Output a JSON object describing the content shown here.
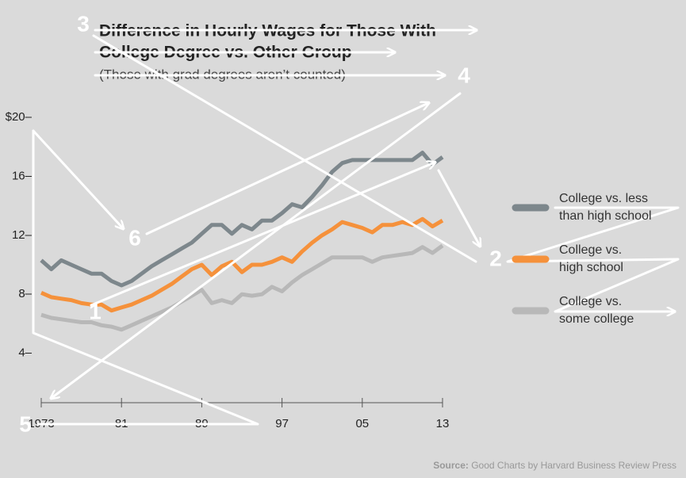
{
  "chart_data": {
    "type": "line",
    "title_lines": [
      "Difference in Hourly Wages for Those With",
      "College Degree vs. Other Group"
    ],
    "subtitle": "(Those with grad degrees aren’t counted)",
    "x": [
      1973,
      1974,
      1975,
      1976,
      1977,
      1978,
      1979,
      1980,
      1981,
      1982,
      1983,
      1984,
      1985,
      1986,
      1987,
      1988,
      1989,
      1990,
      1991,
      1992,
      1993,
      1994,
      1995,
      1996,
      1997,
      1998,
      1999,
      2000,
      2001,
      2002,
      2003,
      2004,
      2005,
      2006,
      2007,
      2008,
      2009,
      2010,
      2011,
      2012,
      2013
    ],
    "series": [
      {
        "name": "College vs. less than high school",
        "color": "#7d878c",
        "values": [
          10.3,
          9.7,
          10.3,
          10.0,
          9.7,
          9.4,
          9.4,
          8.9,
          8.6,
          8.9,
          9.4,
          9.9,
          10.3,
          10.7,
          11.1,
          11.5,
          12.1,
          12.7,
          12.7,
          12.1,
          12.7,
          12.4,
          13.0,
          13.0,
          13.5,
          14.1,
          13.9,
          14.6,
          15.4,
          16.3,
          16.9,
          17.1,
          17.1,
          17.1,
          17.1,
          17.1,
          17.1,
          17.1,
          17.6,
          16.8,
          17.3
        ]
      },
      {
        "name": "College vs. high school",
        "color": "#f5913b",
        "values": [
          8.1,
          7.8,
          7.7,
          7.6,
          7.4,
          7.3,
          7.3,
          6.9,
          7.1,
          7.3,
          7.6,
          7.9,
          8.3,
          8.7,
          9.2,
          9.7,
          10.0,
          9.3,
          9.9,
          10.2,
          9.5,
          10.0,
          10.0,
          10.2,
          10.5,
          10.2,
          10.9,
          11.5,
          12.0,
          12.4,
          12.9,
          12.7,
          12.5,
          12.2,
          12.7,
          12.7,
          12.9,
          12.7,
          13.1,
          12.6,
          13.0
        ]
      },
      {
        "name": "College vs. some college",
        "color": "#b8b8b8",
        "values": [
          6.6,
          6.4,
          6.3,
          6.2,
          6.1,
          6.1,
          5.9,
          5.8,
          5.6,
          5.9,
          6.2,
          6.5,
          6.8,
          7.1,
          7.5,
          7.9,
          8.3,
          7.4,
          7.6,
          7.4,
          8.0,
          7.9,
          8.0,
          8.5,
          8.2,
          8.8,
          9.3,
          9.7,
          10.1,
          10.5,
          10.5,
          10.5,
          10.5,
          10.2,
          10.5,
          10.6,
          10.7,
          10.8,
          11.2,
          10.8,
          11.3
        ]
      }
    ],
    "xlim": [
      1973,
      2013
    ],
    "xticks": [
      1973,
      {
        "value": 1981,
        "label": "81"
      },
      {
        "value": 1989,
        "label": "89"
      },
      {
        "value": 1997,
        "label": "97"
      },
      {
        "value": 2005,
        "label": "05"
      },
      {
        "value": 2013,
        "label": "13"
      }
    ],
    "ylim": [
      0,
      20
    ],
    "yticks": [
      {
        "value": 4,
        "label": "4–"
      },
      {
        "value": 8,
        "label": "8–"
      },
      {
        "value": 12,
        "label": "12–"
      },
      {
        "value": 16,
        "label": "16–"
      },
      {
        "value": 20,
        "label": "$20–"
      }
    ],
    "legend": "right",
    "source_label": "Source:",
    "source": "Good Charts by Harvard Business Review Press",
    "overlay_labels": [
      "1",
      "2",
      "3",
      "4",
      "5",
      "6"
    ]
  }
}
